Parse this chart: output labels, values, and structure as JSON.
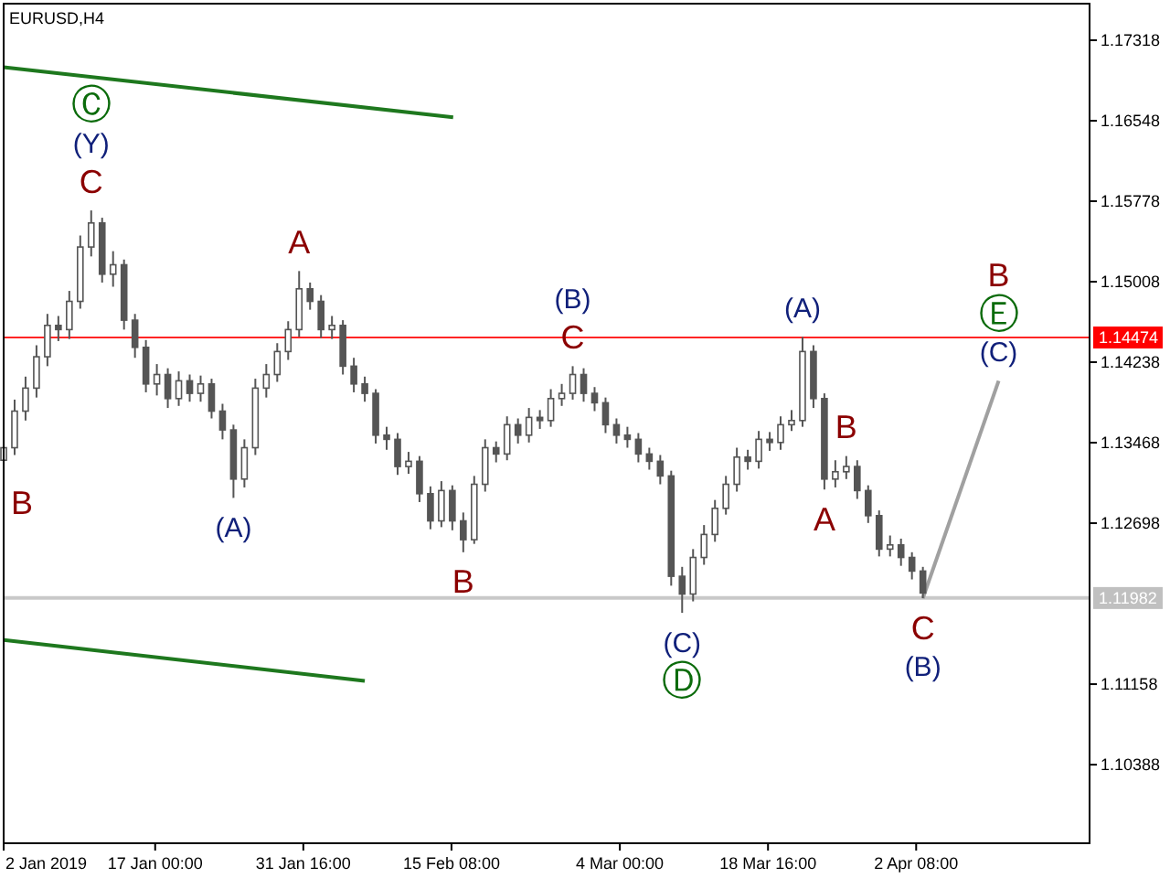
{
  "chart_data": {
    "type": "candlestick",
    "title": "EURUSD,H4",
    "x": [
      "2019-01-02T00:00",
      "2019-01-03T02:00",
      "2019-01-04T04:00",
      "2019-01-05T06:00",
      "2019-01-06T08:00",
      "2019-01-07T10:00",
      "2019-01-08T12:00",
      "2019-01-09T14:00",
      "2019-01-10T16:00",
      "2019-01-11T18:00",
      "2019-01-12T20:00",
      "2019-01-13T22:00",
      "2019-01-15T00:00",
      "2019-01-16T02:00",
      "2019-01-17T04:00",
      "2019-01-18T06:00",
      "2019-01-19T08:00",
      "2019-01-20T10:00",
      "2019-01-21T12:00",
      "2019-01-22T14:00",
      "2019-01-23T16:00",
      "2019-01-24T18:00",
      "2019-01-25T20:00",
      "2019-01-26T22:00",
      "2019-01-28T00:00",
      "2019-01-29T02:00",
      "2019-01-30T04:00",
      "2019-01-31T06:00",
      "2019-02-01T08:00",
      "2019-02-02T10:00",
      "2019-02-03T12:00",
      "2019-02-04T14:00",
      "2019-02-05T16:00",
      "2019-02-06T18:00",
      "2019-02-07T20:00",
      "2019-02-08T22:00",
      "2019-02-10T00:00",
      "2019-02-11T02:00",
      "2019-02-12T04:00",
      "2019-02-13T06:00",
      "2019-02-14T08:00",
      "2019-02-15T10:00",
      "2019-02-16T12:00",
      "2019-02-17T14:00",
      "2019-02-18T16:00",
      "2019-02-19T18:00",
      "2019-02-20T20:00",
      "2019-02-21T22:00",
      "2019-02-23T00:00",
      "2019-02-24T02:00",
      "2019-02-25T04:00",
      "2019-02-26T06:00",
      "2019-02-27T08:00",
      "2019-02-28T10:00",
      "2019-03-01T12:00",
      "2019-03-02T14:00",
      "2019-03-03T16:00",
      "2019-03-04T18:00",
      "2019-03-05T20:00",
      "2019-03-06T22:00",
      "2019-03-08T00:00",
      "2019-03-09T02:00",
      "2019-03-10T04:00",
      "2019-03-11T06:00",
      "2019-03-12T08:00",
      "2019-03-13T10:00",
      "2019-03-14T12:00",
      "2019-03-15T14:00",
      "2019-03-16T16:00",
      "2019-03-17T18:00",
      "2019-03-18T20:00",
      "2019-03-19T22:00",
      "2019-03-21T00:00",
      "2019-03-22T02:00",
      "2019-03-23T04:00",
      "2019-03-24T06:00",
      "2019-03-25T08:00",
      "2019-03-26T10:00",
      "2019-03-27T12:00",
      "2019-03-28T14:00",
      "2019-03-29T16:00",
      "2019-03-30T18:00",
      "2019-03-31T20:00",
      "2019-04-01T22:00",
      "2019-04-03T00:00"
    ],
    "ohlc": [
      [
        1.133,
        1.1355,
        1.1318,
        1.1342
      ],
      [
        1.1342,
        1.1388,
        1.1335,
        1.1377
      ],
      [
        1.1377,
        1.141,
        1.1368,
        1.1399
      ],
      [
        1.1399,
        1.144,
        1.139,
        1.1429
      ],
      [
        1.1429,
        1.147,
        1.142,
        1.1459
      ],
      [
        1.1459,
        1.1468,
        1.1444,
        1.1455
      ],
      [
        1.1455,
        1.1492,
        1.1446,
        1.1482
      ],
      [
        1.1482,
        1.1545,
        1.1475,
        1.1534
      ],
      [
        1.1534,
        1.1569,
        1.1525,
        1.1557
      ],
      [
        1.1557,
        1.1562,
        1.15,
        1.1508
      ],
      [
        1.1508,
        1.153,
        1.1496,
        1.1517
      ],
      [
        1.1517,
        1.1522,
        1.1455,
        1.1464
      ],
      [
        1.1464,
        1.147,
        1.1428,
        1.1438
      ],
      [
        1.1438,
        1.1445,
        1.1395,
        1.1403
      ],
      [
        1.1403,
        1.1422,
        1.1392,
        1.1412
      ],
      [
        1.1412,
        1.1418,
        1.138,
        1.1389
      ],
      [
        1.1389,
        1.1415,
        1.1382,
        1.1406
      ],
      [
        1.1406,
        1.1412,
        1.1386,
        1.1394
      ],
      [
        1.1394,
        1.1411,
        1.1386,
        1.1403
      ],
      [
        1.1403,
        1.1408,
        1.137,
        1.1377
      ],
      [
        1.1377,
        1.1384,
        1.135,
        1.1359
      ],
      [
        1.1359,
        1.1364,
        1.1294,
        1.1312
      ],
      [
        1.1312,
        1.135,
        1.1304,
        1.1342
      ],
      [
        1.1342,
        1.1408,
        1.1335,
        1.1399
      ],
      [
        1.1399,
        1.1422,
        1.139,
        1.1412
      ],
      [
        1.1412,
        1.1442,
        1.1405,
        1.1434
      ],
      [
        1.1434,
        1.1463,
        1.1426,
        1.1455
      ],
      [
        1.1455,
        1.1511,
        1.1448,
        1.1494
      ],
      [
        1.1494,
        1.15,
        1.1474,
        1.1482
      ],
      [
        1.1482,
        1.1488,
        1.1447,
        1.1455
      ],
      [
        1.1455,
        1.1468,
        1.1446,
        1.1459
      ],
      [
        1.1459,
        1.1464,
        1.1412,
        1.142
      ],
      [
        1.142,
        1.1428,
        1.1395,
        1.1403
      ],
      [
        1.1403,
        1.141,
        1.1386,
        1.1394
      ],
      [
        1.1394,
        1.1398,
        1.1346,
        1.1354
      ],
      [
        1.1354,
        1.1362,
        1.134,
        1.135
      ],
      [
        1.135,
        1.1356,
        1.1316,
        1.1324
      ],
      [
        1.1324,
        1.1338,
        1.1317,
        1.1329
      ],
      [
        1.1329,
        1.1334,
        1.129,
        1.1298
      ],
      [
        1.1298,
        1.1305,
        1.1264,
        1.1272
      ],
      [
        1.1272,
        1.131,
        1.1266,
        1.1301
      ],
      [
        1.1301,
        1.1306,
        1.1263,
        1.1272
      ],
      [
        1.1272,
        1.128,
        1.1242,
        1.1254
      ],
      [
        1.1254,
        1.1315,
        1.125,
        1.1307
      ],
      [
        1.1307,
        1.135,
        1.13,
        1.1342
      ],
      [
        1.1342,
        1.1348,
        1.1328,
        1.1336
      ],
      [
        1.1336,
        1.1372,
        1.133,
        1.1364
      ],
      [
        1.1364,
        1.137,
        1.1346,
        1.1354
      ],
      [
        1.1354,
        1.138,
        1.1347,
        1.1371
      ],
      [
        1.1371,
        1.1378,
        1.136,
        1.1368
      ],
      [
        1.1368,
        1.1398,
        1.1362,
        1.1389
      ],
      [
        1.1389,
        1.1403,
        1.1382,
        1.1394
      ],
      [
        1.1394,
        1.142,
        1.1388,
        1.1412
      ],
      [
        1.1412,
        1.1418,
        1.1386,
        1.1394
      ],
      [
        1.1394,
        1.14,
        1.1377,
        1.1385
      ],
      [
        1.1385,
        1.139,
        1.1356,
        1.1364
      ],
      [
        1.1364,
        1.137,
        1.1346,
        1.1354
      ],
      [
        1.1354,
        1.1362,
        1.1342,
        1.135
      ],
      [
        1.135,
        1.1356,
        1.1328,
        1.1336
      ],
      [
        1.1336,
        1.1342,
        1.1321,
        1.1329
      ],
      [
        1.1329,
        1.1335,
        1.1307,
        1.1315
      ],
      [
        1.1315,
        1.132,
        1.121,
        1.1219
      ],
      [
        1.1219,
        1.1228,
        1.1184,
        1.1202
      ],
      [
        1.1202,
        1.1245,
        1.1195,
        1.1237
      ],
      [
        1.1237,
        1.1268,
        1.123,
        1.1259
      ],
      [
        1.1259,
        1.1292,
        1.1252,
        1.1284
      ],
      [
        1.1284,
        1.1315,
        1.1278,
        1.1307
      ],
      [
        1.1307,
        1.1342,
        1.13,
        1.1333
      ],
      [
        1.1333,
        1.134,
        1.1321,
        1.1329
      ],
      [
        1.1329,
        1.1358,
        1.1322,
        1.135
      ],
      [
        1.135,
        1.1357,
        1.1339,
        1.1347
      ],
      [
        1.1347,
        1.1372,
        1.134,
        1.1364
      ],
      [
        1.1364,
        1.1378,
        1.1358,
        1.1368
      ],
      [
        1.1368,
        1.1448,
        1.1362,
        1.1434
      ],
      [
        1.1434,
        1.144,
        1.138,
        1.1389
      ],
      [
        1.1389,
        1.1394,
        1.1302,
        1.1312
      ],
      [
        1.1312,
        1.133,
        1.1304,
        1.1319
      ],
      [
        1.1319,
        1.1334,
        1.1312,
        1.1324
      ],
      [
        1.1324,
        1.133,
        1.1293,
        1.1301
      ],
      [
        1.1301,
        1.1306,
        1.127,
        1.1277
      ],
      [
        1.1277,
        1.1282,
        1.1238,
        1.1245
      ],
      [
        1.1245,
        1.1258,
        1.1238,
        1.1249
      ],
      [
        1.1249,
        1.1255,
        1.1229,
        1.1237
      ],
      [
        1.1237,
        1.1242,
        1.1216,
        1.1224
      ],
      [
        1.1224,
        1.1228,
        1.1198,
        1.1203
      ]
    ],
    "series": [
      {
        "type": "line",
        "color": "#a0a0a0",
        "x": [
          "2019-04-03T00:00",
          "2019-04-10T12:00"
        ],
        "values": [
          1.1198,
          1.1406
        ]
      },
      {
        "type": "line",
        "color": "#1e781e",
        "x": [
          "2019-01-02T00:00",
          "2019-02-15T12:00"
        ],
        "values": [
          1.1706,
          1.1658
        ]
      },
      {
        "type": "line",
        "color": "#1e781e",
        "x": [
          "2019-01-02T00:00",
          "2019-02-06T18:00"
        ],
        "values": [
          1.1158,
          1.1119
        ]
      }
    ],
    "xlim": [
      "2019-01-02T00:00",
      "2019-04-19T12:00"
    ],
    "xticks": [
      {
        "value": "2019-01-02T00:00",
        "label": "2 Jan 2019"
      },
      {
        "value": "2019-01-17T00:00",
        "label": "17 Jan 00:00"
      },
      {
        "value": "2019-01-31T16:00",
        "label": "31 Jan 16:00"
      },
      {
        "value": "2019-02-15T08:00",
        "label": "15 Feb 08:00"
      },
      {
        "value": "2019-03-04T00:00",
        "label": "4 Mar 00:00"
      },
      {
        "value": "2019-03-18T16:00",
        "label": "18 Mar 16:00"
      },
      {
        "value": "2019-04-02T08:00",
        "label": "2 Apr 08:00"
      }
    ],
    "ylim": [
      1.09636,
      1.17668
    ],
    "yticks": [
      1.17318,
      1.16548,
      1.15778,
      1.15008,
      1.14238,
      1.13468,
      1.12698,
      1.11158,
      1.10388
    ],
    "ref_lines": [
      {
        "axis": "y",
        "value": 1.14474,
        "label": "1.14474",
        "color": "#ff0000"
      },
      {
        "axis": "y",
        "value": 1.11982,
        "label": "1.11982",
        "color": "#c0c0c0"
      }
    ],
    "annotations": [
      {
        "text": "Ⓒ",
        "x": "2019-01-10T16:00",
        "y": 1.1569
      },
      {
        "text": "(Y)",
        "x": "2019-01-10T16:00",
        "y": 1.1569
      },
      {
        "text": "C",
        "x": "2019-01-10T16:00",
        "y": 1.1569
      },
      {
        "text": "A",
        "x": "2019-01-31T06:00",
        "y": 1.1511
      },
      {
        "text": "B",
        "x": "2019-01-02T00:00",
        "y": 1.1318
      },
      {
        "text": "(A)",
        "x": "2019-01-24T18:00",
        "y": 1.1294
      },
      {
        "text": "B",
        "x": "2019-02-16T12:00",
        "y": 1.1242
      },
      {
        "text": "(B)",
        "x": "2019-02-27T08:00",
        "y": 1.142
      },
      {
        "text": "C",
        "x": "2019-02-27T08:00",
        "y": 1.142
      },
      {
        "text": "(C)",
        "x": "2019-03-10T04:00",
        "y": 1.1184
      },
      {
        "text": "Ⓓ",
        "x": "2019-03-10T04:00",
        "y": 1.1184
      },
      {
        "text": "(A)",
        "x": "2019-03-22T02:00",
        "y": 1.1448
      },
      {
        "text": "B",
        "x": "2019-03-26T10:00",
        "y": 1.1334
      },
      {
        "text": "A",
        "x": "2019-03-24T06:00",
        "y": 1.1302
      },
      {
        "text": "C",
        "x": "2019-04-03T00:00",
        "y": 1.1198
      },
      {
        "text": "(B)",
        "x": "2019-04-03T00:00",
        "y": 1.1198
      },
      {
        "text": "B",
        "x": "2019-04-10T12:00",
        "y": 1.1406
      },
      {
        "text": "Ⓔ",
        "x": "2019-04-10T12:00",
        "y": 1.1406
      },
      {
        "text": "(C)",
        "x": "2019-04-10T12:00",
        "y": 1.1406
      }
    ]
  }
}
